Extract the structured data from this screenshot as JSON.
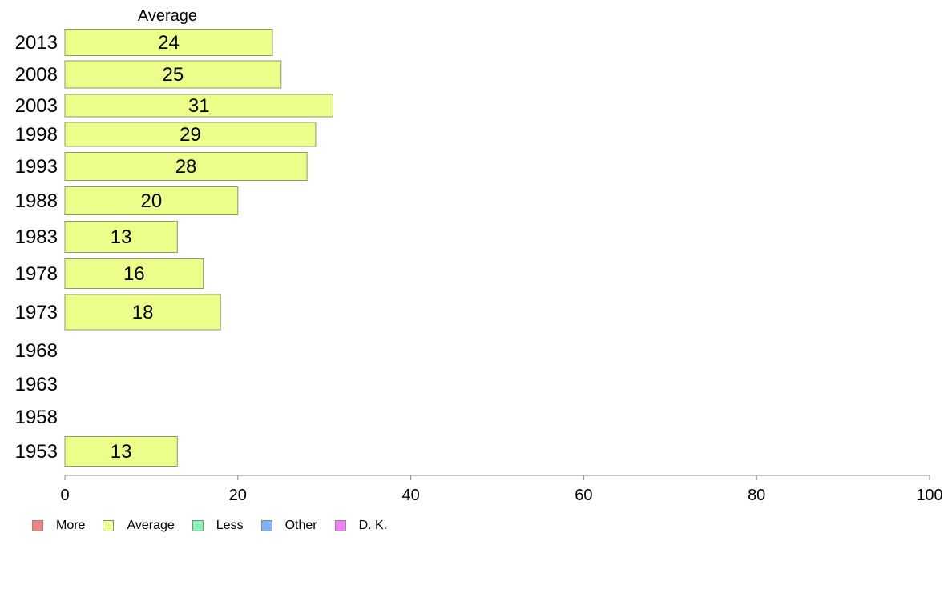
{
  "chart_data": {
    "type": "bar",
    "orientation": "horizontal",
    "title": "Average",
    "categories": [
      "2013",
      "2008",
      "2003",
      "1998",
      "1993",
      "1988",
      "1983",
      "1978",
      "1973",
      "1968",
      "1963",
      "1958",
      "1953"
    ],
    "series": [
      {
        "name": "More",
        "color": "#f4827f",
        "values": [
          null,
          null,
          null,
          null,
          null,
          null,
          null,
          null,
          null,
          null,
          null,
          null,
          null
        ]
      },
      {
        "name": "Average",
        "color": "#ecff8b",
        "values": [
          24,
          25,
          31,
          29,
          28,
          20,
          13,
          16,
          18,
          null,
          null,
          null,
          13
        ]
      },
      {
        "name": "Less",
        "color": "#7ff7b4",
        "values": [
          null,
          null,
          null,
          null,
          null,
          null,
          null,
          null,
          null,
          null,
          null,
          null,
          null
        ]
      },
      {
        "name": "Other",
        "color": "#80b3ff",
        "values": [
          null,
          null,
          null,
          null,
          null,
          null,
          null,
          null,
          null,
          null,
          null,
          null,
          null
        ]
      },
      {
        "name": "D. K.",
        "color": "#f47ef7",
        "values": [
          null,
          null,
          null,
          null,
          null,
          null,
          null,
          null,
          null,
          null,
          null,
          null,
          null
        ]
      }
    ],
    "data_labels": [
      "24",
      "25",
      "31",
      "29",
      "28",
      "20",
      "13",
      "16",
      "18",
      "",
      "",
      "",
      "13"
    ],
    "xlim": [
      0,
      100
    ],
    "xticks": [
      "0",
      "20",
      "40",
      "60",
      "80",
      "100"
    ],
    "legend_position": "bottom-left",
    "grid": false
  }
}
